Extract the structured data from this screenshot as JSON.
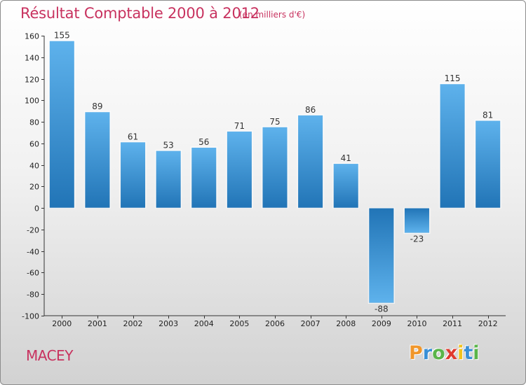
{
  "chart_data": {
    "type": "bar",
    "title": "Résultat Comptable 2000 à 2012",
    "subtitle": "(en milliers d'€)",
    "categories": [
      "2000",
      "2001",
      "2002",
      "2003",
      "2004",
      "2005",
      "2006",
      "2007",
      "2008",
      "2009",
      "2010",
      "2011",
      "2012"
    ],
    "values": [
      155,
      89,
      61,
      53,
      56,
      71,
      75,
      86,
      41,
      -88,
      -23,
      115,
      81
    ],
    "ylim": [
      -100,
      160
    ],
    "yticks": [
      160,
      140,
      120,
      100,
      80,
      60,
      40,
      20,
      0,
      -20,
      -40,
      -60,
      -80,
      -100
    ],
    "xlabel": "",
    "ylabel": "",
    "grid": false,
    "colors": {
      "bar_light": "#5aaeea",
      "bar_dark": "#2376b8",
      "title": "#c8325f"
    }
  },
  "footer": {
    "commune": "MACEY",
    "logo": {
      "letters": [
        "P",
        "r",
        "o",
        "x",
        "i",
        "t",
        "i"
      ],
      "colors": [
        "#f0962a",
        "#3a8fd6",
        "#5ab54a",
        "#e03a2e",
        "#f2c21d",
        "#3a8fd6",
        "#5ab54a"
      ]
    }
  }
}
